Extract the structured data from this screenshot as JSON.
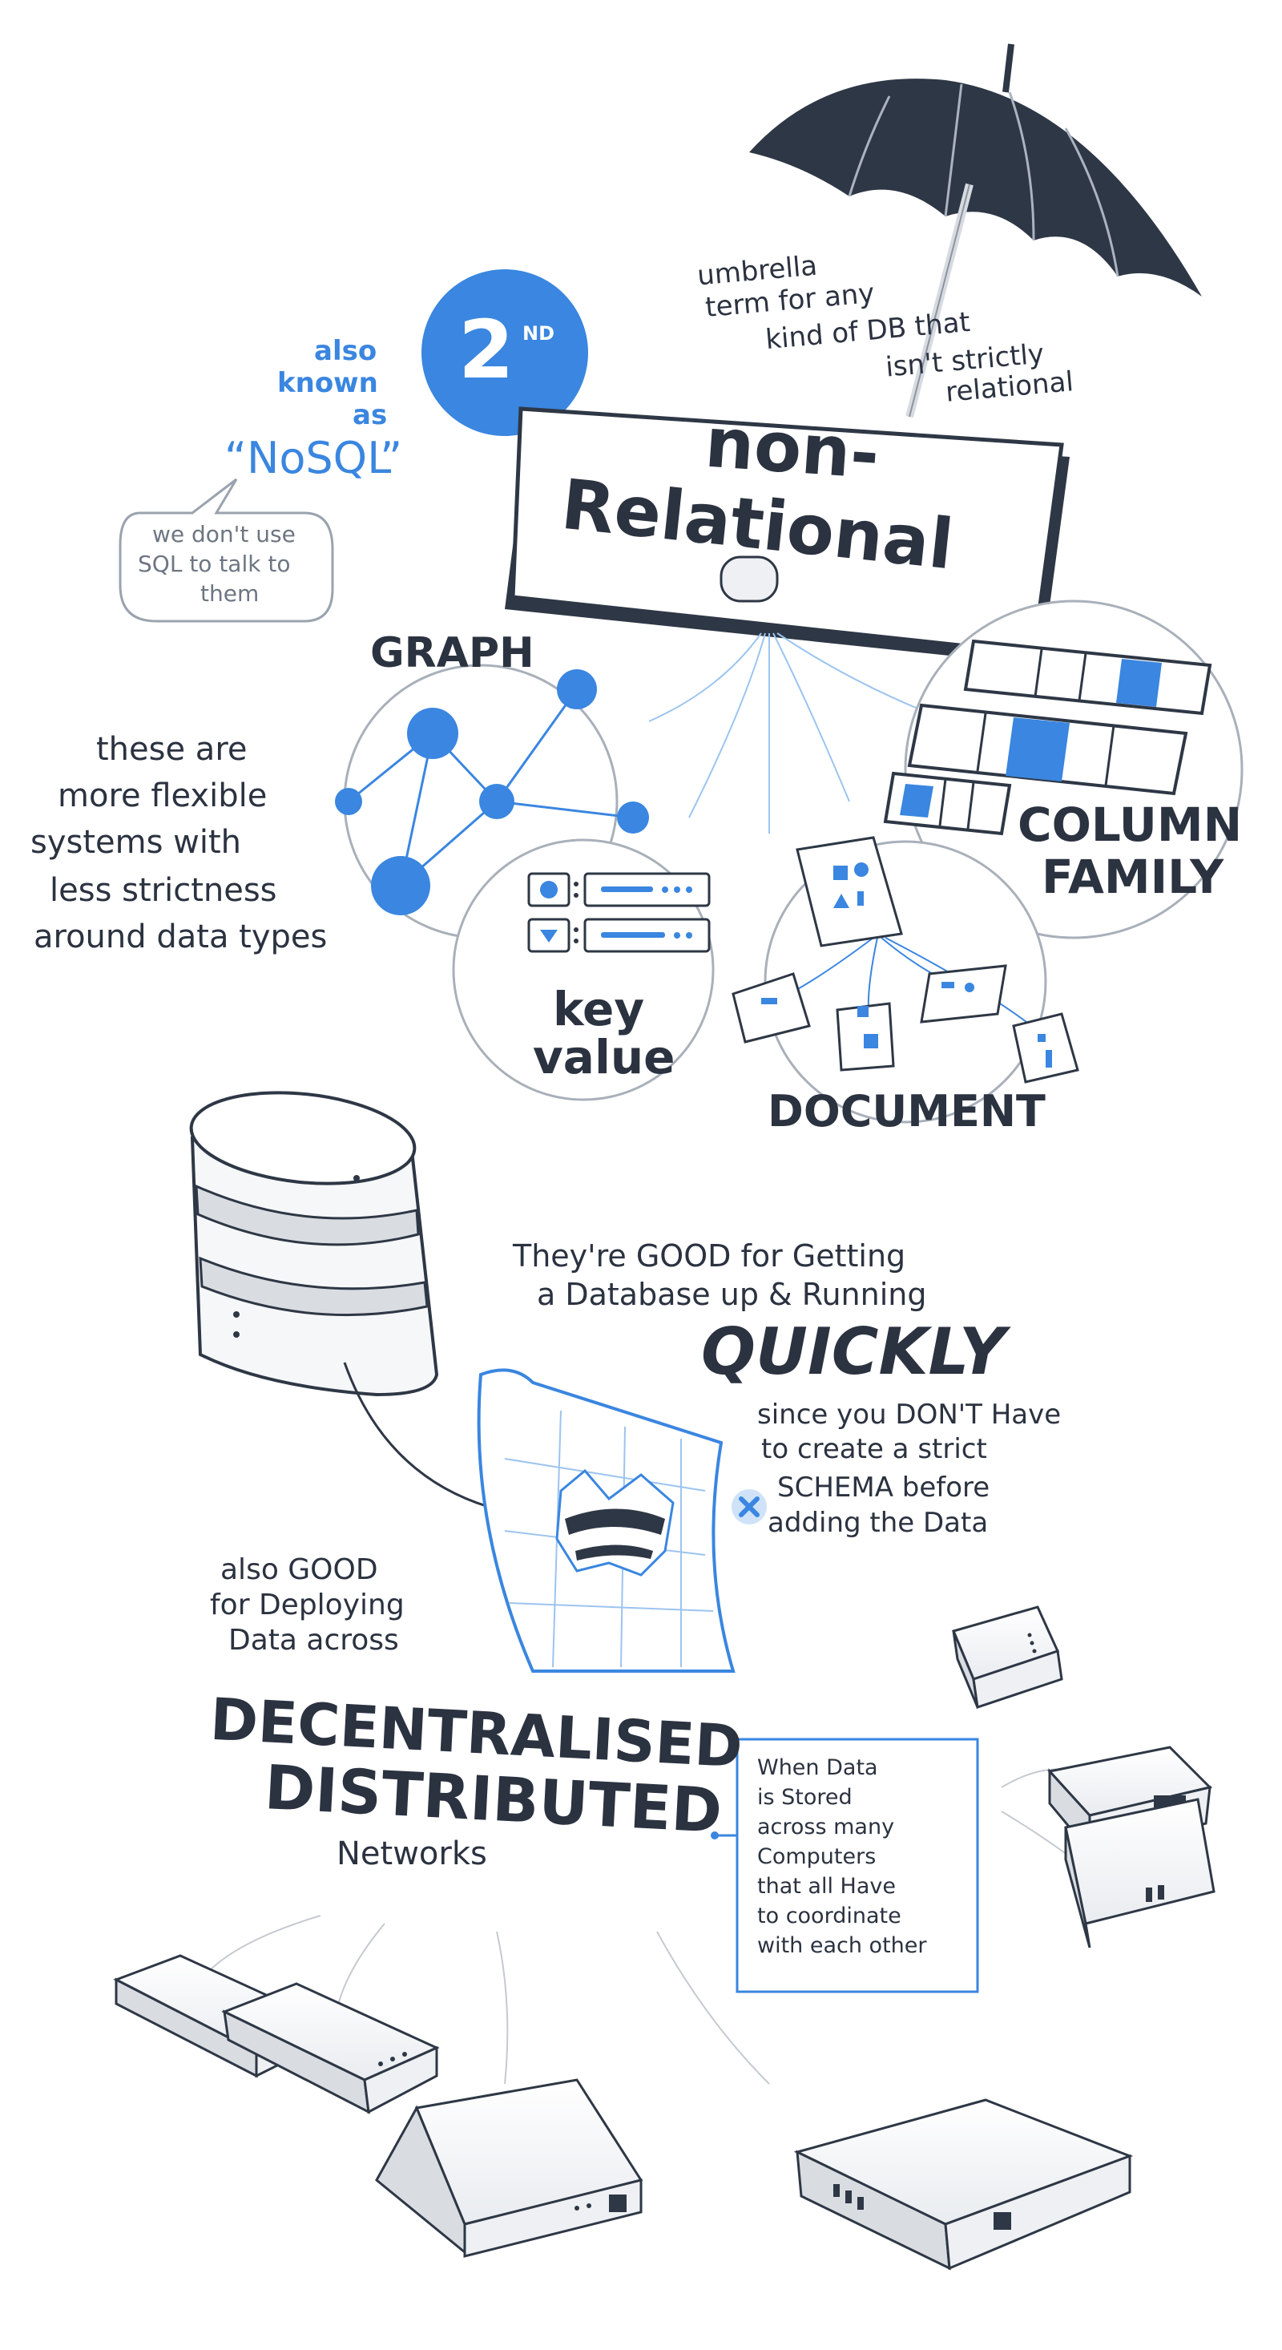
{
  "colors": {
    "ink": "#2b3240",
    "accent": "#3a86e0",
    "light_accent": "#cfe2f8",
    "line": "#9aa3ae",
    "paper": "#ffffff"
  },
  "header": {
    "badge_number": "2",
    "badge_suffix": "ND",
    "aka_lines": [
      "also",
      "known",
      "as"
    ],
    "nosql": "“NoSQL”",
    "speech_bubble": [
      "we don't use",
      "SQL to talk to",
      "them"
    ],
    "umbrella_note": [
      "umbrella",
      "term for any",
      "kind of DB that",
      "isn't strictly",
      "relational"
    ],
    "sign_title": [
      "non-",
      "Relational"
    ]
  },
  "types": {
    "graph": "GRAPH",
    "key_value": [
      "key",
      "value"
    ],
    "document": "DOCUMENT",
    "column_family": [
      "COLUMN",
      "FAMILY"
    ]
  },
  "flexible_note": [
    "these are",
    "more flexible",
    "systems with",
    "less strictness",
    "around data types"
  ],
  "quickly_section": {
    "intro": [
      "They're GOOD for Getting",
      "a Database up & Running"
    ],
    "emphasis": "QUICKLY",
    "reason": [
      "since you DON'T Have",
      "to create a strict",
      "SCHEMA before",
      "adding the Data"
    ]
  },
  "distributed_section": {
    "intro": [
      "also GOOD",
      "for Deploying",
      "Data across"
    ],
    "title": [
      "DECENTRALISED",
      "DISTRIBUTED"
    ],
    "subtitle": "Networks",
    "definition": [
      "When Data",
      "is Stored",
      "across many",
      "Computers",
      "that all Have",
      "to coordinate",
      "with each other"
    ]
  },
  "icons": [
    "umbrella-icon",
    "graph-nodes-icon",
    "key-value-icon",
    "document-icon",
    "column-family-icon",
    "database-cylinder-icon",
    "torn-schema-paper-icon",
    "cross-icon",
    "network-device-icon"
  ]
}
